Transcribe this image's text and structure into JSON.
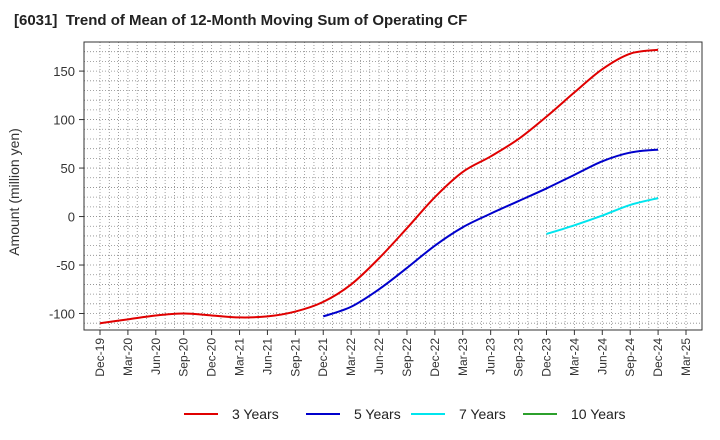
{
  "chart_data": {
    "type": "line",
    "title": "[6031]  Trend of Mean of 12-Month Moving Sum of Operating CF",
    "xlabel": "",
    "ylabel": "Amount (million yen)",
    "ylim": [
      -117,
      180
    ],
    "yticks": [
      150,
      100,
      50,
      0,
      -50,
      -100
    ],
    "categories": [
      "Dec-19",
      "Mar-20",
      "Jun-20",
      "Sep-20",
      "Dec-20",
      "Mar-21",
      "Jun-21",
      "Sep-21",
      "Dec-21",
      "Mar-22",
      "Jun-22",
      "Sep-22",
      "Dec-22",
      "Mar-23",
      "Jun-23",
      "Sep-23",
      "Dec-23",
      "Mar-24",
      "Jun-24",
      "Sep-24",
      "Dec-24",
      "Mar-25"
    ],
    "series": [
      {
        "name": "3 Years",
        "color": "#e00000",
        "values": [
          -110,
          -106,
          -102,
          -100,
          -102,
          -104,
          -103,
          -98,
          -88,
          -70,
          -43,
          -12,
          20,
          46,
          62,
          80,
          103,
          128,
          152,
          168,
          172,
          null
        ]
      },
      {
        "name": "5 Years",
        "color": "#0000cc",
        "values": [
          null,
          null,
          null,
          null,
          null,
          null,
          null,
          null,
          -103,
          -93,
          -75,
          -53,
          -30,
          -11,
          3,
          16,
          29,
          43,
          57,
          66,
          69,
          null
        ]
      },
      {
        "name": "7 Years",
        "color": "#00e5ee",
        "values": [
          null,
          null,
          null,
          null,
          null,
          null,
          null,
          null,
          null,
          null,
          null,
          null,
          null,
          null,
          null,
          null,
          -18,
          -9,
          1,
          12,
          19,
          null
        ]
      },
      {
        "name": "10 Years",
        "color": "#2ca02c",
        "values": [
          null,
          null,
          null,
          null,
          null,
          null,
          null,
          null,
          null,
          null,
          null,
          null,
          null,
          null,
          null,
          null,
          null,
          null,
          null,
          null,
          null,
          null
        ]
      }
    ]
  }
}
